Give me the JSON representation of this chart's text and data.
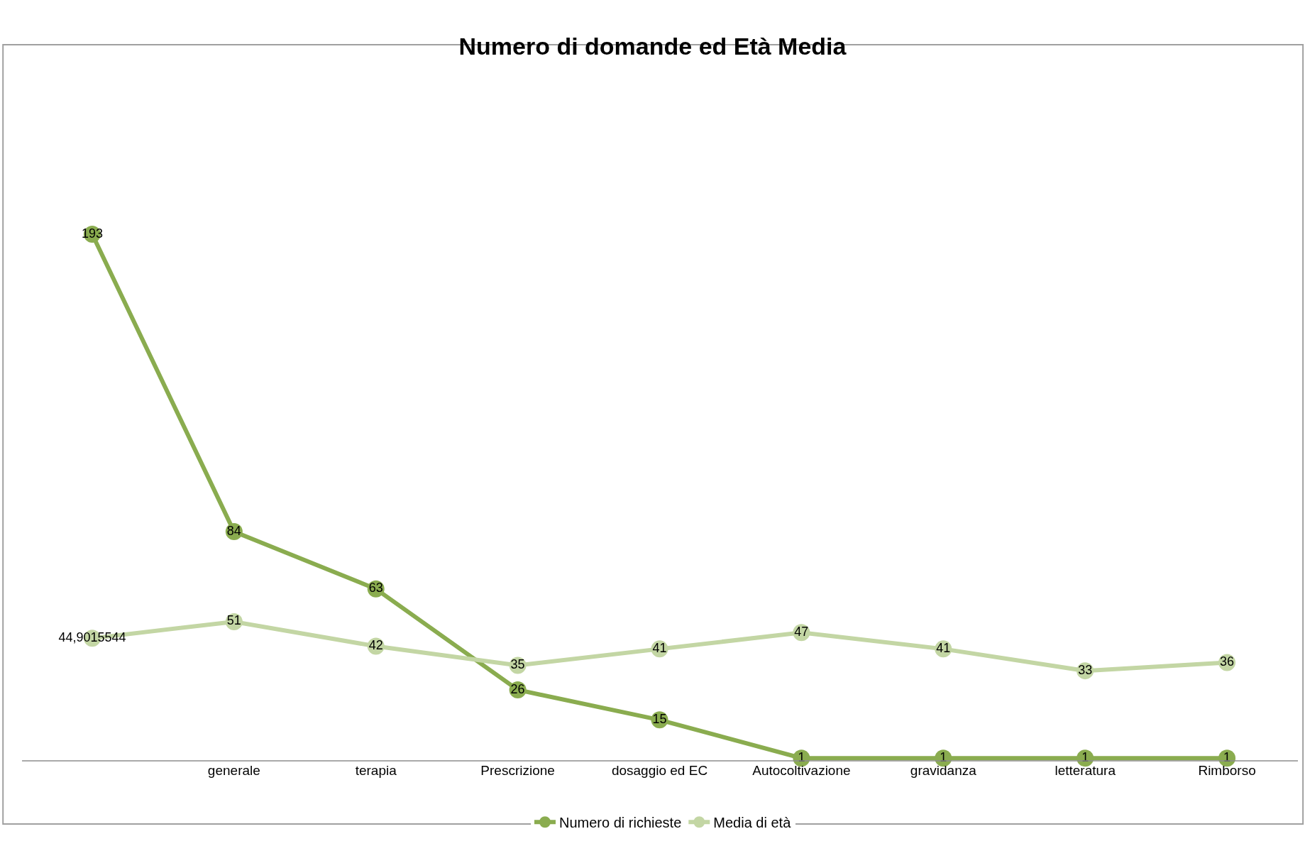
{
  "chart_data": {
    "type": "line",
    "title": "Numero di domande ed Età Media",
    "categories": [
      null,
      "generale",
      "terapia",
      "Prescrizione",
      "dosaggio ed EC",
      "Autocoltivazione",
      "gravidanza",
      "letteratura",
      "Rimborso"
    ],
    "series": [
      {
        "name": "Numero di richieste",
        "color": "#8aac4f",
        "values": [
          193,
          84,
          63,
          26,
          15,
          1,
          1,
          1,
          1
        ],
        "value_labels": [
          "193",
          "84",
          "63",
          "26",
          "15",
          "1",
          "1",
          "1",
          "1"
        ]
      },
      {
        "name": "Media di età",
        "color": "#c3d6a4",
        "values": [
          44.9015544,
          51,
          42,
          35,
          41,
          47,
          41,
          33,
          36
        ],
        "value_labels": [
          "44,9015544",
          "51",
          "42",
          "35",
          "41",
          "47",
          "41",
          "33",
          "36"
        ]
      }
    ],
    "marker": "circle",
    "line_style": "solid",
    "legend": "bottom"
  }
}
